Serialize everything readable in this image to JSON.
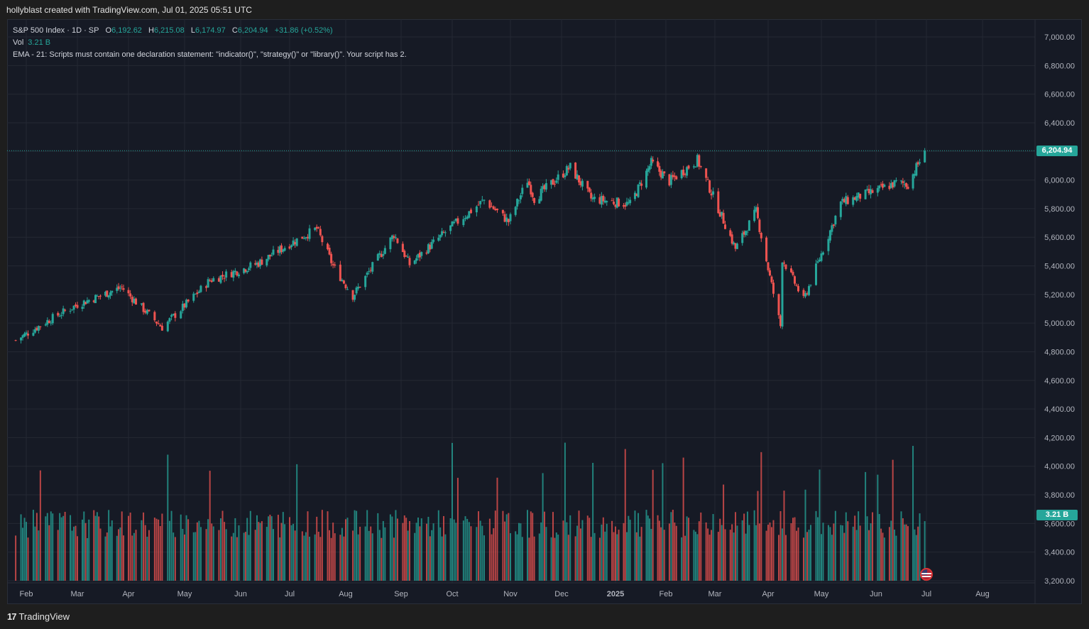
{
  "header": {
    "author_line": "hollyblast created with TradingView.com, Jul 01, 2025 05:51 UTC"
  },
  "legend": {
    "symbol": "S&P 500 Index · 1D · SP",
    "o_label": "O",
    "o_value": "6,192.62",
    "h_label": "H",
    "h_value": "6,215.08",
    "l_label": "L",
    "l_value": "6,174.97",
    "c_label": "C",
    "c_value": "6,204.94",
    "change": "+31.86 (+0.52%)",
    "vol_label": "Vol",
    "vol_value": "3.21 B",
    "ema_line": "EMA - 21: Scripts must contain one declaration statement: \"indicator()\", \"strategy()\" or \"library()\". Your script has 2."
  },
  "price_tag": {
    "label": "6,204.94",
    "color": "#26a69a"
  },
  "volume_tag": {
    "label": "3.21 B",
    "color": "#26a69a"
  },
  "footer": {
    "logo_mark": "17",
    "logo_text": "TradingView"
  },
  "colors": {
    "up": "#26a69a",
    "down": "#ef5350",
    "bg": "#161a25",
    "grid": "#242833",
    "text": "#b2b5be"
  },
  "chart_data": {
    "type": "candlestick",
    "title": "S&P 500 Index · 1D · SP",
    "x_ticks": [
      "Feb",
      "Mar",
      "Apr",
      "May",
      "Jun",
      "Jul",
      "Aug",
      "Sep",
      "Oct",
      "Nov",
      "Dec",
      "2025",
      "Feb",
      "Mar",
      "Apr",
      "May",
      "Jun",
      "Jul",
      "Aug"
    ],
    "y_ticks": [
      "7,000.00",
      "6,800.00",
      "6,600.00",
      "6,400.00",
      "6,200.00",
      "6,000.00",
      "5,800.00",
      "5,600.00",
      "5,400.00",
      "5,200.00",
      "5,000.00",
      "4,800.00",
      "4,600.00",
      "4,400.00",
      "4,200.00",
      "4,000.00",
      "3,800.00",
      "3,600.00",
      "3,400.00",
      "3,200.00"
    ],
    "y_range": [
      3200,
      7000
    ],
    "last_close": 6204.94,
    "price_path": [
      {
        "d": "2024-01-26",
        "c": 4880
      },
      {
        "d": "2024-02-15",
        "c": 5030
      },
      {
        "d": "2024-03-01",
        "c": 5130
      },
      {
        "d": "2024-03-28",
        "c": 5250
      },
      {
        "d": "2024-04-19",
        "c": 4970
      },
      {
        "d": "2024-05-15",
        "c": 5300
      },
      {
        "d": "2024-06-12",
        "c": 5420
      },
      {
        "d": "2024-07-16",
        "c": 5660
      },
      {
        "d": "2024-07-25",
        "c": 5400
      },
      {
        "d": "2024-08-05",
        "c": 5190
      },
      {
        "d": "2024-08-28",
        "c": 5620
      },
      {
        "d": "2024-09-06",
        "c": 5410
      },
      {
        "d": "2024-10-18",
        "c": 5860
      },
      {
        "d": "2024-10-31",
        "c": 5710
      },
      {
        "d": "2024-11-11",
        "c": 6000
      },
      {
        "d": "2024-11-15",
        "c": 5870
      },
      {
        "d": "2024-12-06",
        "c": 6090
      },
      {
        "d": "2024-12-18",
        "c": 5870
      },
      {
        "d": "2025-01-10",
        "c": 5830
      },
      {
        "d": "2025-01-23",
        "c": 6120
      },
      {
        "d": "2025-02-03",
        "c": 5990
      },
      {
        "d": "2025-02-19",
        "c": 6140
      },
      {
        "d": "2025-03-13",
        "c": 5520
      },
      {
        "d": "2025-03-25",
        "c": 5780
      },
      {
        "d": "2025-04-08",
        "c": 4980
      },
      {
        "d": "2025-04-09",
        "c": 5450
      },
      {
        "d": "2025-04-21",
        "c": 5160
      },
      {
        "d": "2025-05-12",
        "c": 5840
      },
      {
        "d": "2025-06-02",
        "c": 5930
      },
      {
        "d": "2025-06-13",
        "c": 5980
      },
      {
        "d": "2025-06-20",
        "c": 5970
      },
      {
        "d": "2025-06-30",
        "c": 6204.94
      }
    ],
    "volume_last": "3.21 B"
  }
}
